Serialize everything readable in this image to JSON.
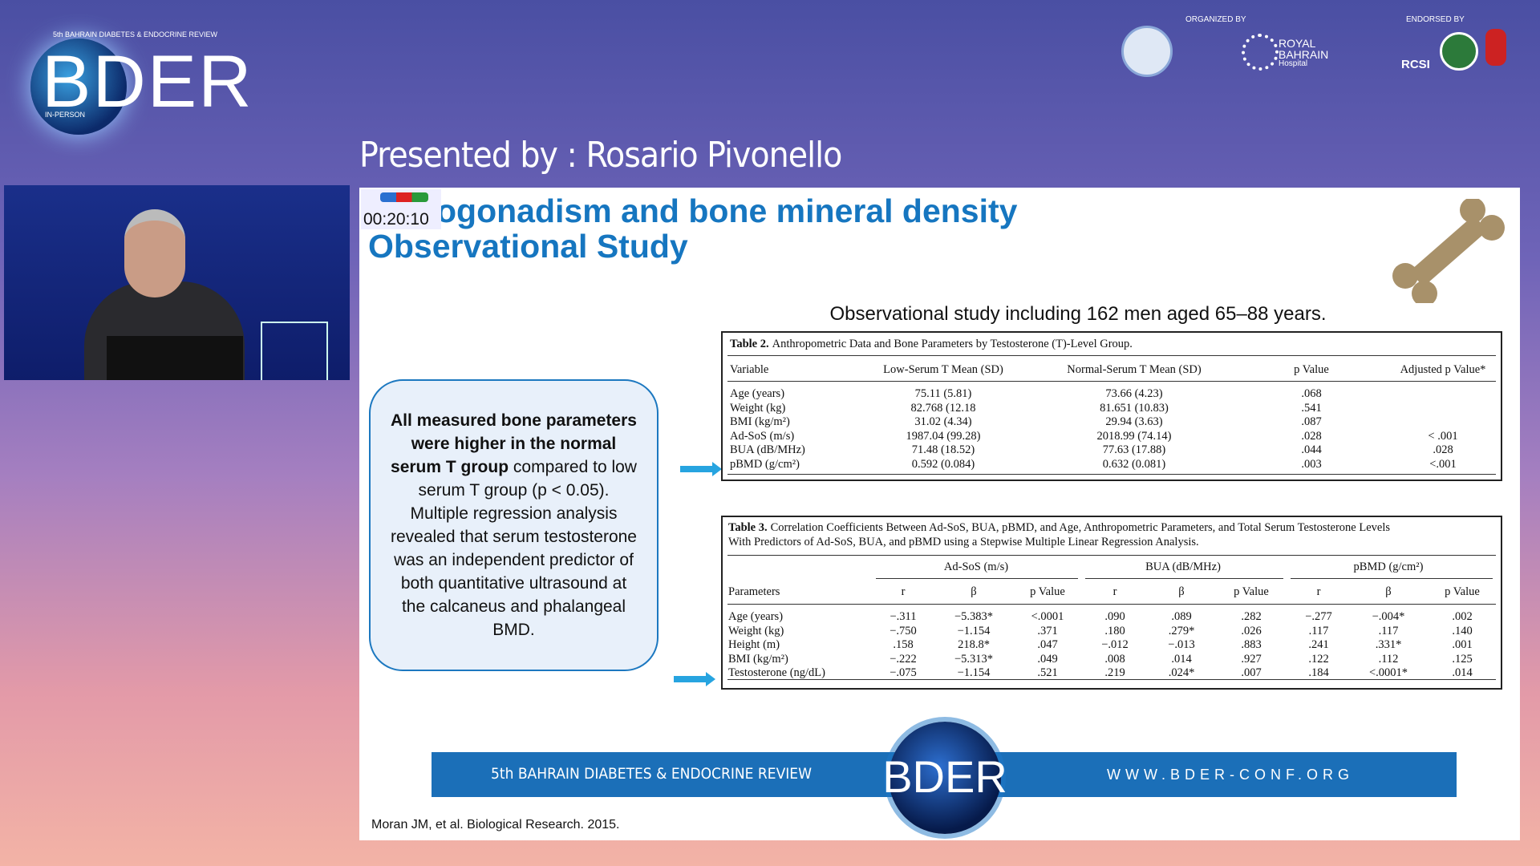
{
  "header": {
    "logo_tagline": "5th BAHRAIN DIABETES & ENDOCRINE REVIEW",
    "logo_text": "BDER",
    "logo_mode": "IN-PERSON",
    "organized_by": "ORGANIZED BY",
    "endorsed_by": "ENDORSED BY",
    "hospital": [
      "ROYAL",
      "BAHRAIN",
      "Hospital"
    ],
    "rcsi": "RCSI",
    "presenter": "Presented by : Rosario Pivonello"
  },
  "timer": "00:20:10",
  "slide": {
    "title_line1": "ogonadism and bone mineral density",
    "title_line2": "Observational Study",
    "study_note": "Observational study including 162 men aged 65–88 years.",
    "callout_bold": "All measured bone parameters were higher in the normal serum T group",
    "callout_text": "compared to low serum T group (p < 0.05). Multiple regression analysis revealed that serum testosterone was an independent predictor of both quantitative ultrasound at the calcaneus and phalangeal BMD.",
    "table2": {
      "label": "Table 2.",
      "caption": "Anthropometric Data and Bone Parameters by Testosterone (T)-Level Group.",
      "headers": [
        "Variable",
        "Low-Serum T Mean (SD)",
        "Normal-Serum T Mean (SD)",
        "p Value",
        "Adjusted p Value*"
      ],
      "rows": [
        [
          "Age (years)",
          "75.11 (5.81)",
          "73.66 (4.23)",
          ".068"
        ],
        [
          "Weight (kg)",
          "82.768 (12.18",
          "81.651 (10.83)",
          ".541"
        ],
        [
          "BMI (kg/m²)",
          "31.02 (4.34)",
          "29.94 (3.63)",
          ".087"
        ],
        [
          "Ad-SoS (m/s)",
          "1987.04 (99.28)",
          "2018.99 (74.14)",
          ".028",
          "< .001"
        ],
        [
          "BUA (dB/MHz)",
          "71.48 (18.52)",
          "77.63 (17.88)",
          ".044",
          ".028"
        ],
        [
          "pBMD (g/cm²)",
          "0.592 (0.084)",
          "0.632 (0.081)",
          ".003",
          "<.001"
        ]
      ]
    },
    "table3": {
      "label": "Table 3.",
      "caption_line1": "Correlation Coefficients Between Ad-SoS, BUA, pBMD, and Age, Anthropometric Parameters, and Total Serum Testosterone Levels",
      "caption_line2": "With Predictors of Ad-SoS, BUA, and pBMD using a Stepwise Multiple Linear Regression Analysis.",
      "groups": [
        "Ad-SoS (m/s)",
        "BUA (dB/MHz)",
        "pBMD (g/cm²)"
      ],
      "headers": [
        "Parameters",
        "r",
        "β",
        "p Value",
        "r",
        "β",
        "p Value",
        "r",
        "β",
        "p Value"
      ],
      "rows": [
        [
          "Age (years)",
          "−.311",
          "−5.383*",
          "<.0001",
          ".090",
          ".089",
          ".282",
          "−.277",
          "−.004*",
          ".002"
        ],
        [
          "Weight (kg)",
          "−.750",
          "−1.154",
          ".371",
          ".180",
          ".279*",
          ".026",
          ".117",
          ".117",
          ".140"
        ],
        [
          "Height (m)",
          ".158",
          "218.8*",
          ".047",
          "−.012",
          "−.013",
          ".883",
          ".241",
          ".331*",
          ".001"
        ],
        [
          "BMI (kg/m²)",
          "−.222",
          "−5.313*",
          ".049",
          ".008",
          ".014",
          ".927",
          ".122",
          ".112",
          ".125"
        ],
        [
          "Testosterone (ng/dL)",
          "−.075",
          "−1.154",
          ".521",
          ".219",
          ".024*",
          ".007",
          ".184",
          "<.0001*",
          ".014"
        ]
      ]
    },
    "banner_left": "5th BAHRAIN DIABETES & ENDOCRINE REVIEW",
    "banner_logo": "BDER",
    "banner_right": "WWW.BDER-CONF.ORG",
    "citation": "Moran JM, et al. Biological Research. 2015."
  }
}
